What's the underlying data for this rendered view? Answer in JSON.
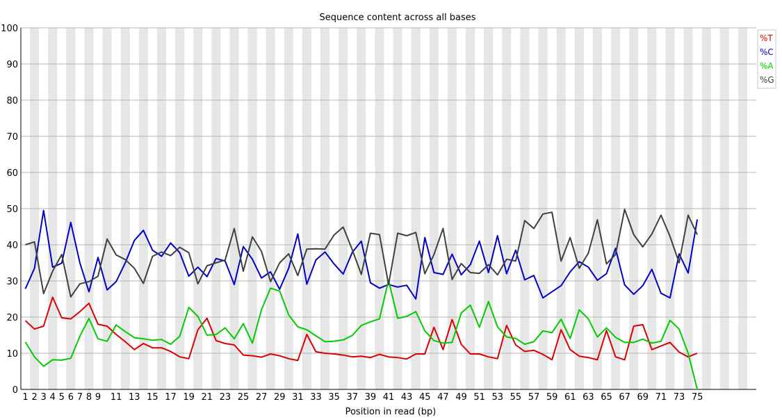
{
  "chart_data": {
    "type": "line",
    "title": "Sequence content across all bases",
    "xlabel": "Position in read (bp)",
    "ylabel": "",
    "ylim": [
      0,
      100
    ],
    "yticks": [
      "0",
      "10",
      "20",
      "30",
      "40",
      "50",
      "60",
      "70",
      "80",
      "90",
      "100"
    ],
    "xticks": [
      "1",
      "2",
      "3",
      "4",
      "5",
      "6",
      "7",
      "8",
      "9",
      "11",
      "13",
      "15",
      "17",
      "19",
      "21",
      "23",
      "25",
      "27",
      "29",
      "31",
      "33",
      "35",
      "37",
      "39",
      "41",
      "43",
      "45",
      "47",
      "49",
      "51",
      "53",
      "55",
      "57",
      "59",
      "61",
      "63",
      "65",
      "67",
      "69",
      "71",
      "73",
      "75"
    ],
    "x": [
      1,
      2,
      3,
      4,
      5,
      6,
      7,
      8,
      9,
      10,
      11,
      12,
      13,
      14,
      15,
      16,
      17,
      18,
      19,
      20,
      21,
      22,
      23,
      24,
      25,
      26,
      27,
      28,
      29,
      30,
      31,
      32,
      33,
      34,
      35,
      36,
      37,
      38,
      39,
      40,
      41,
      42,
      43,
      44,
      45,
      46,
      47,
      48,
      49,
      50,
      51,
      52,
      53,
      54,
      55,
      56,
      57,
      58,
      59,
      60,
      61,
      62,
      63,
      64,
      65,
      66,
      67,
      68,
      69,
      70,
      71,
      72,
      73,
      74,
      75
    ],
    "xlim": [
      0.5,
      81.5
    ],
    "grid": true,
    "legend_position": "top-right",
    "series": [
      {
        "name": "%T",
        "color": "#dd0000",
        "values": [
          19,
          16.7,
          17.5,
          25.5,
          19.8,
          19.5,
          21.5,
          23.8,
          18,
          17.5,
          15.2,
          13.2,
          11,
          12.7,
          11.5,
          11.5,
          10.5,
          9,
          8.5,
          16.5,
          19.7,
          13.5,
          12.7,
          12.3,
          9.5,
          9.3,
          8.9,
          9.8,
          9.3,
          8.5,
          8,
          15.2,
          10.4,
          10,
          9.8,
          9.5,
          9,
          9.2,
          8.8,
          9.7,
          9,
          8.8,
          8.4,
          9.8,
          9.8,
          17.2,
          11,
          19.3,
          12.5,
          9.8,
          9.8,
          9,
          8.5,
          17.7,
          12.3,
          10.5,
          10.8,
          9.7,
          8.2,
          16.5,
          11,
          9.2,
          8.8,
          8.2,
          16.3,
          9,
          8.2,
          17.5,
          17.9,
          11,
          12,
          13,
          10.3,
          9,
          10
        ]
      },
      {
        "name": "%C",
        "color": "#0000c8",
        "values": [
          27.8,
          33.5,
          49.5,
          33.8,
          34.9,
          46.2,
          35,
          27,
          36.5,
          27.5,
          29.8,
          35,
          41.2,
          44,
          38.5,
          36.8,
          40.5,
          37.8,
          31.3,
          33.8,
          31.2,
          36.2,
          35.5,
          29,
          39.5,
          36,
          30.8,
          32.5,
          27.7,
          33.5,
          43,
          29.1,
          35.8,
          38,
          34.7,
          31.9,
          37.9,
          41,
          29.5,
          28,
          29,
          28.3,
          28.8,
          25,
          42,
          32.3,
          31.8,
          37.4,
          31.7,
          34.5,
          41,
          32.3,
          42.5,
          32,
          38.5,
          30.3,
          31.5,
          25.3,
          27,
          28.7,
          32.5,
          35.3,
          33.8,
          30.2,
          32,
          39,
          28.9,
          26.3,
          28.7,
          33.2,
          26.6,
          25.3,
          37.5,
          32.2,
          47
        ]
      },
      {
        "name": "%A",
        "color": "#00cc00",
        "values": [
          13.1,
          9,
          6.4,
          8.2,
          8.1,
          8.6,
          14.7,
          19.6,
          14,
          13.3,
          17.8,
          16,
          14.3,
          14,
          13.6,
          13.8,
          12.5,
          14.7,
          22.7,
          20.2,
          15,
          15.2,
          17,
          14,
          18.2,
          12.8,
          22,
          28,
          27.2,
          20.6,
          17.3,
          16.5,
          14.8,
          13.2,
          13.3,
          13.7,
          14.9,
          17.7,
          18.7,
          19.5,
          30.2,
          19.7,
          20.2,
          21.5,
          16.2,
          13.5,
          12.8,
          13,
          21.1,
          23.3,
          17.2,
          24.3,
          17.3,
          14.5,
          14.1,
          12.5,
          13.2,
          16.2,
          15.7,
          19.4,
          14.1,
          22,
          19.5,
          14.5,
          17,
          14.4,
          13,
          13,
          13.9,
          12.8,
          13.3,
          19.1,
          16.7,
          10,
          0
        ]
      },
      {
        "name": "%G",
        "color": "#404040",
        "values": [
          40,
          40.8,
          26.5,
          32.7,
          37.3,
          25.6,
          29.2,
          29.8,
          31.3,
          41.6,
          37.2,
          35.9,
          33.5,
          29.3,
          36.8,
          38,
          37,
          39.3,
          37.8,
          29.2,
          34.2,
          35,
          35.8,
          44.5,
          32.7,
          42.2,
          38.2,
          29.8,
          35,
          37.5,
          31.5,
          38.8,
          38.9,
          38.8,
          42.7,
          44.9,
          38.6,
          31.8,
          43.2,
          42.8,
          29,
          43.2,
          42.5,
          43.4,
          32,
          37.3,
          44.5,
          30.4,
          34.8,
          32.3,
          32.1,
          34.5,
          31.7,
          36,
          35.5,
          46.7,
          44.5,
          48.5,
          49,
          35.5,
          42,
          33.5,
          37.7,
          46.9,
          34.7,
          37.3,
          49.8,
          42.8,
          39.4,
          43,
          48.2,
          42.3,
          35,
          48.2,
          42.8
        ]
      }
    ]
  }
}
